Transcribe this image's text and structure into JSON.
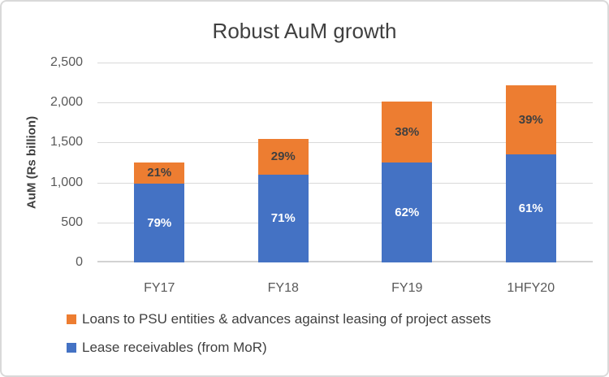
{
  "chart": {
    "title": "Robust AuM growth",
    "y_axis_title": "AuM (Rs billion)"
  },
  "chart_data": {
    "type": "bar",
    "stacked": true,
    "title": "Robust AuM growth",
    "categories": [
      "FY17",
      "FY18",
      "FY19",
      "1HFY20"
    ],
    "series": [
      {
        "name": "Lease receivables (from MoR)",
        "key": "lease-receivables",
        "color": "#4472C4",
        "values": [
          990,
          1100,
          1250,
          1355
        ],
        "labels": [
          "79%",
          "71%",
          "62%",
          "61%"
        ],
        "label_color": "#FFFFFF"
      },
      {
        "name": "Loans to PSU entities & advances against leasing of project assets",
        "key": "psu-loans",
        "color": "#ED7D31",
        "values": [
          260,
          450,
          760,
          865
        ],
        "labels": [
          "21%",
          "29%",
          "38%",
          "39%"
        ],
        "label_color": "#404040"
      }
    ],
    "totals_estimated": [
      1250,
      1550,
      2010,
      2220
    ],
    "xlabel": "",
    "ylabel": "AuM (Rs billion)",
    "ylim": [
      0,
      2500
    ],
    "ytick_interval": 500,
    "ytick_labels": [
      "0",
      "500",
      "1,000",
      "1,500",
      "2,000",
      "2,500"
    ],
    "grid": true,
    "legend_position": "bottom-left"
  },
  "legend": {
    "items": [
      {
        "label": "Loans to PSU entities & advances against leasing of project assets",
        "color": "#ED7D31",
        "key": "psu-loans"
      },
      {
        "label": "Lease receivables (from MoR)",
        "color": "#4472C4",
        "key": "lease-receivables"
      }
    ]
  },
  "colors": {
    "blue": "#4472C4",
    "orange": "#ED7D31",
    "gridline": "#D9D9D9",
    "axis_text": "#595959",
    "title_text": "#404040",
    "frame_border": "#D9D9D9"
  }
}
